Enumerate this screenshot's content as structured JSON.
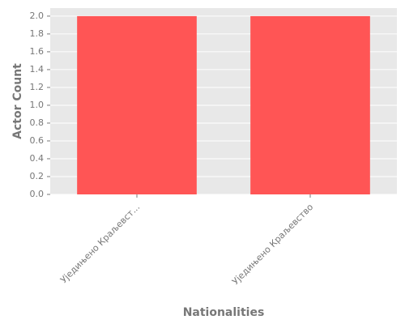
{
  "chart_data": {
    "type": "bar",
    "x_label": "Nationalities",
    "y_label": "Actor Count",
    "categories": [
      "Уједињено Краљевст...",
      "Уједињено Краљевство"
    ],
    "values": [
      2,
      2
    ],
    "color": "#ff5555",
    "ylim": [
      0,
      2.09
    ],
    "yticks": [
      {
        "value": 0,
        "label": "0.0"
      },
      {
        "value": 0.2,
        "label": "0.2"
      },
      {
        "value": 0.4,
        "label": "0.4"
      },
      {
        "value": 0.6,
        "label": "0.6"
      },
      {
        "value": 0.8,
        "label": "0.8"
      },
      {
        "value": 1,
        "label": "1.0"
      },
      {
        "value": 1.2,
        "label": "1.2"
      },
      {
        "value": 1.4,
        "label": "1.4"
      },
      {
        "value": 1.6,
        "label": "1.6"
      },
      {
        "value": 1.8,
        "label": "1.8"
      },
      {
        "value": 2,
        "label": "2.0"
      }
    ],
    "grid": true
  }
}
